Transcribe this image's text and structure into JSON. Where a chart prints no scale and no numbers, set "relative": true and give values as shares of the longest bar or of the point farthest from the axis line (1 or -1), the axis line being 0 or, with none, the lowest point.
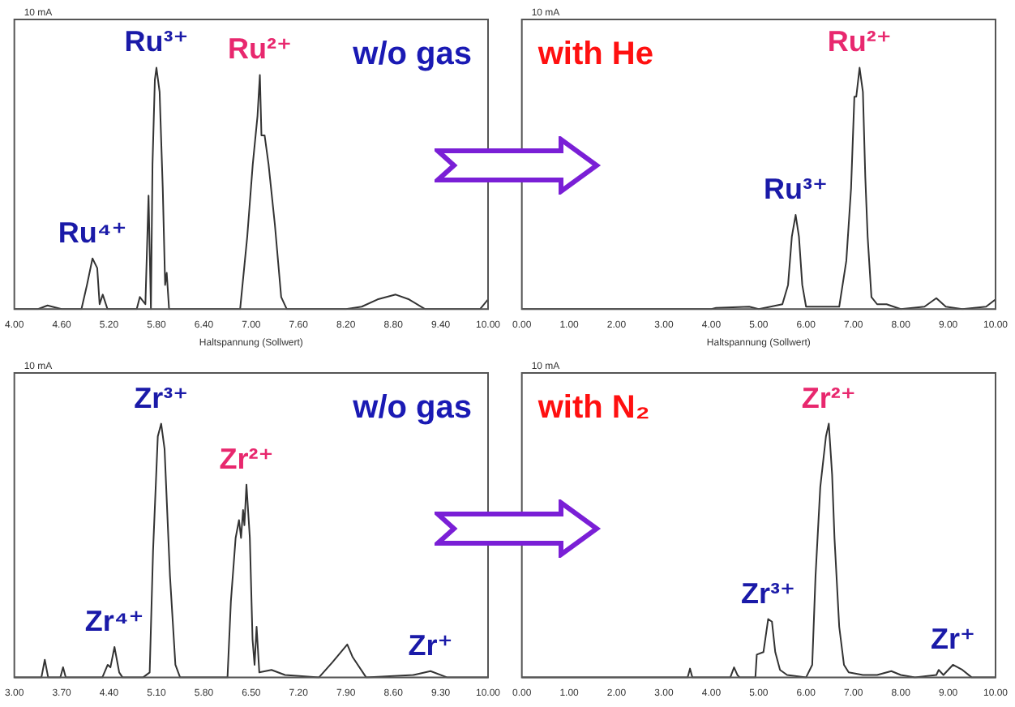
{
  "chart_data": [
    {
      "type": "line",
      "title": "w/o gas",
      "xlabel": "Haltspannung (Sollwert)",
      "ylabel": "10 mA",
      "relative": true,
      "xlim": [
        4,
        10
      ],
      "xticks": [
        {
          "value": 4,
          "label": "4.00"
        },
        {
          "value": 4.6,
          "label": "4.60"
        },
        {
          "value": 5.2,
          "label": "5.20"
        },
        {
          "value": 5.8,
          "label": "5.80"
        },
        {
          "value": 6.4,
          "label": "6.40"
        },
        {
          "value": 7,
          "label": "7.00"
        },
        {
          "value": 7.6,
          "label": "7.60"
        },
        {
          "value": 8.2,
          "label": "8.20"
        },
        {
          "value": 8.8,
          "label": "8.80"
        },
        {
          "value": 9.4,
          "label": "9.40"
        },
        {
          "value": 10,
          "label": "10.00"
        }
      ],
      "grid": false,
      "legend": false,
      "marker": "none",
      "series": [
        {
          "color": "#333333",
          "x": [
            4.0,
            4.3,
            4.42,
            4.6,
            4.85,
            4.92,
            4.99,
            5.05,
            5.08,
            5.12,
            5.18,
            5.55,
            5.59,
            5.66,
            5.7,
            5.73,
            5.75,
            5.78,
            5.8,
            5.84,
            5.88,
            5.91,
            5.93,
            5.96,
            6.86,
            6.95,
            7.02,
            7.08,
            7.11,
            7.13,
            7.17,
            7.22,
            7.3,
            7.38,
            7.45,
            8.2,
            8.4,
            8.6,
            8.83,
            9.0,
            9.2,
            9.9,
            10.0
          ],
          "values": [
            0,
            0,
            0.015,
            0,
            0,
            0.1,
            0.21,
            0.17,
            0.02,
            0.06,
            0,
            0,
            0.05,
            0.02,
            0.47,
            0,
            0.6,
            0.95,
            1,
            0.9,
            0.5,
            0.1,
            0.15,
            0,
            0,
            0.3,
            0.6,
            0.8,
            0.97,
            0.72,
            0.72,
            0.6,
            0.35,
            0.05,
            0,
            0,
            0.01,
            0.04,
            0.06,
            0.04,
            0,
            0,
            0.04
          ]
        }
      ],
      "annotations": [
        {
          "text": "Ru⁴⁺",
          "x": 4.99,
          "y": 0.21
        },
        {
          "text": "Ru³⁺",
          "x": 5.8,
          "y": 1
        },
        {
          "text": "Ru²⁺",
          "x": 7.11,
          "y": 0.97
        }
      ]
    },
    {
      "type": "line",
      "title": "with He",
      "xlabel": "Haltspannung (Sollwert)",
      "ylabel": "10 mA",
      "relative": true,
      "xlim": [
        0,
        10
      ],
      "xticks": [
        {
          "value": 0,
          "label": "0.00"
        },
        {
          "value": 1,
          "label": "1.00"
        },
        {
          "value": 2,
          "label": "2.00"
        },
        {
          "value": 3,
          "label": "3.00"
        },
        {
          "value": 4,
          "label": "4.00"
        },
        {
          "value": 5,
          "label": "5.00"
        },
        {
          "value": 6,
          "label": "6.00"
        },
        {
          "value": 7,
          "label": "7.00"
        },
        {
          "value": 8,
          "label": "8.00"
        },
        {
          "value": 9,
          "label": "9.00"
        },
        {
          "value": 10,
          "label": "10.00"
        }
      ],
      "grid": false,
      "legend": false,
      "marker": "none",
      "series": [
        {
          "color": "#333333",
          "x": [
            0,
            4.0,
            4.1,
            4.8,
            5.0,
            5.25,
            5.5,
            5.62,
            5.7,
            5.78,
            5.85,
            5.92,
            6.0,
            6.7,
            6.85,
            6.95,
            7.02,
            7.06,
            7.13,
            7.2,
            7.25,
            7.3,
            7.38,
            7.5,
            7.7,
            8.0,
            8.5,
            8.75,
            8.95,
            9.3,
            9.8,
            10.0
          ],
          "values": [
            0,
            0,
            0.005,
            0.01,
            0,
            0.01,
            0.02,
            0.1,
            0.3,
            0.39,
            0.3,
            0.1,
            0.01,
            0.01,
            0.2,
            0.5,
            0.88,
            0.88,
            1,
            0.9,
            0.55,
            0.3,
            0.05,
            0.02,
            0.02,
            0,
            0.01,
            0.045,
            0.01,
            0,
            0.01,
            0.04
          ]
        }
      ],
      "annotations": [
        {
          "text": "Ru³⁺",
          "x": 5.78,
          "y": 0.39
        },
        {
          "text": "Ru²⁺",
          "x": 7.13,
          "y": 1
        }
      ]
    },
    {
      "type": "line",
      "title": "w/o gas",
      "ylabel": "10 mA",
      "relative": true,
      "xlim": [
        3,
        10
      ],
      "xticks": [
        {
          "value": 3,
          "label": "3.00"
        },
        {
          "value": 3.7,
          "label": "3.70"
        },
        {
          "value": 4.4,
          "label": "4.40"
        },
        {
          "value": 5.1,
          "label": "5.10"
        },
        {
          "value": 5.8,
          "label": "5.80"
        },
        {
          "value": 6.5,
          "label": "6.50"
        },
        {
          "value": 7.2,
          "label": "7.20"
        },
        {
          "value": 7.9,
          "label": "7.90"
        },
        {
          "value": 8.6,
          "label": "8.60"
        },
        {
          "value": 9.3,
          "label": "9.30"
        },
        {
          "value": 10,
          "label": "10.00"
        }
      ],
      "grid": false,
      "legend": false,
      "marker": "none",
      "series": [
        {
          "color": "#333333",
          "x": [
            3.0,
            3.4,
            3.45,
            3.5,
            3.68,
            3.72,
            3.76,
            4.3,
            4.38,
            4.42,
            4.48,
            4.55,
            4.6,
            4.9,
            5.0,
            5.05,
            5.12,
            5.17,
            5.22,
            5.3,
            5.38,
            5.45,
            6.15,
            6.2,
            6.27,
            6.32,
            6.35,
            6.38,
            6.4,
            6.43,
            6.48,
            6.52,
            6.55,
            6.58,
            6.62,
            6.8,
            7.0,
            7.5,
            7.7,
            7.92,
            8.0,
            8.2,
            8.9,
            9.15,
            9.4,
            10.0
          ],
          "values": [
            0,
            0,
            0.07,
            0,
            0,
            0.04,
            0,
            0,
            0.05,
            0.04,
            0.12,
            0.02,
            0,
            0,
            0.02,
            0.5,
            0.95,
            1,
            0.9,
            0.4,
            0.05,
            0,
            0,
            0.3,
            0.55,
            0.62,
            0.55,
            0.66,
            0.6,
            0.76,
            0.55,
            0.15,
            0.05,
            0.2,
            0.02,
            0.03,
            0.01,
            0,
            0.06,
            0.13,
            0.08,
            0,
            0.01,
            0.025,
            0,
            0
          ]
        }
      ],
      "annotations": [
        {
          "text": "Zr⁴⁺",
          "x": 4.48,
          "y": 0.12
        },
        {
          "text": "Zr³⁺",
          "x": 5.17,
          "y": 1
        },
        {
          "text": "Zr²⁺",
          "x": 6.43,
          "y": 0.76
        },
        {
          "text": "Zr⁺",
          "x": 9.15,
          "y": 0.025
        }
      ]
    },
    {
      "type": "line",
      "title": "with N₂",
      "ylabel": "10 mA",
      "relative": true,
      "xlim": [
        0,
        10
      ],
      "xticks": [
        {
          "value": 0,
          "label": "0.00"
        },
        {
          "value": 1,
          "label": "1.00"
        },
        {
          "value": 2,
          "label": "2.00"
        },
        {
          "value": 3,
          "label": "3.00"
        },
        {
          "value": 4,
          "label": "4.00"
        },
        {
          "value": 5,
          "label": "5.00"
        },
        {
          "value": 6,
          "label": "6.00"
        },
        {
          "value": 7,
          "label": "7.00"
        },
        {
          "value": 8,
          "label": "8.00"
        },
        {
          "value": 9,
          "label": "9.00"
        },
        {
          "value": 10,
          "label": "10.00"
        }
      ],
      "grid": false,
      "legend": false,
      "marker": "none",
      "series": [
        {
          "color": "#333333",
          "x": [
            0,
            3.5,
            3.55,
            3.6,
            4.4,
            4.48,
            4.55,
            4.6,
            4.93,
            4.96,
            5.1,
            5.2,
            5.28,
            5.35,
            5.45,
            5.6,
            6.0,
            6.13,
            6.2,
            6.3,
            6.42,
            6.48,
            6.55,
            6.6,
            6.7,
            6.8,
            6.9,
            7.2,
            7.5,
            7.8,
            8.0,
            8.3,
            8.75,
            8.8,
            8.9,
            9.1,
            9.3,
            9.5,
            10.0
          ],
          "values": [
            0,
            0,
            0.035,
            0,
            0,
            0.04,
            0.01,
            0,
            0,
            0.09,
            0.1,
            0.23,
            0.22,
            0.1,
            0.03,
            0.01,
            0,
            0.05,
            0.4,
            0.75,
            0.95,
            1,
            0.8,
            0.55,
            0.2,
            0.05,
            0.02,
            0.01,
            0.01,
            0.025,
            0.01,
            0,
            0.01,
            0.03,
            0.01,
            0.05,
            0.03,
            0,
            0
          ]
        }
      ],
      "annotations": [
        {
          "text": "Zr³⁺",
          "x": 5.2,
          "y": 0.23
        },
        {
          "text": "Zr²⁺",
          "x": 6.48,
          "y": 1
        },
        {
          "text": "Zr⁺",
          "x": 9.1,
          "y": 0.05
        }
      ]
    }
  ]
}
